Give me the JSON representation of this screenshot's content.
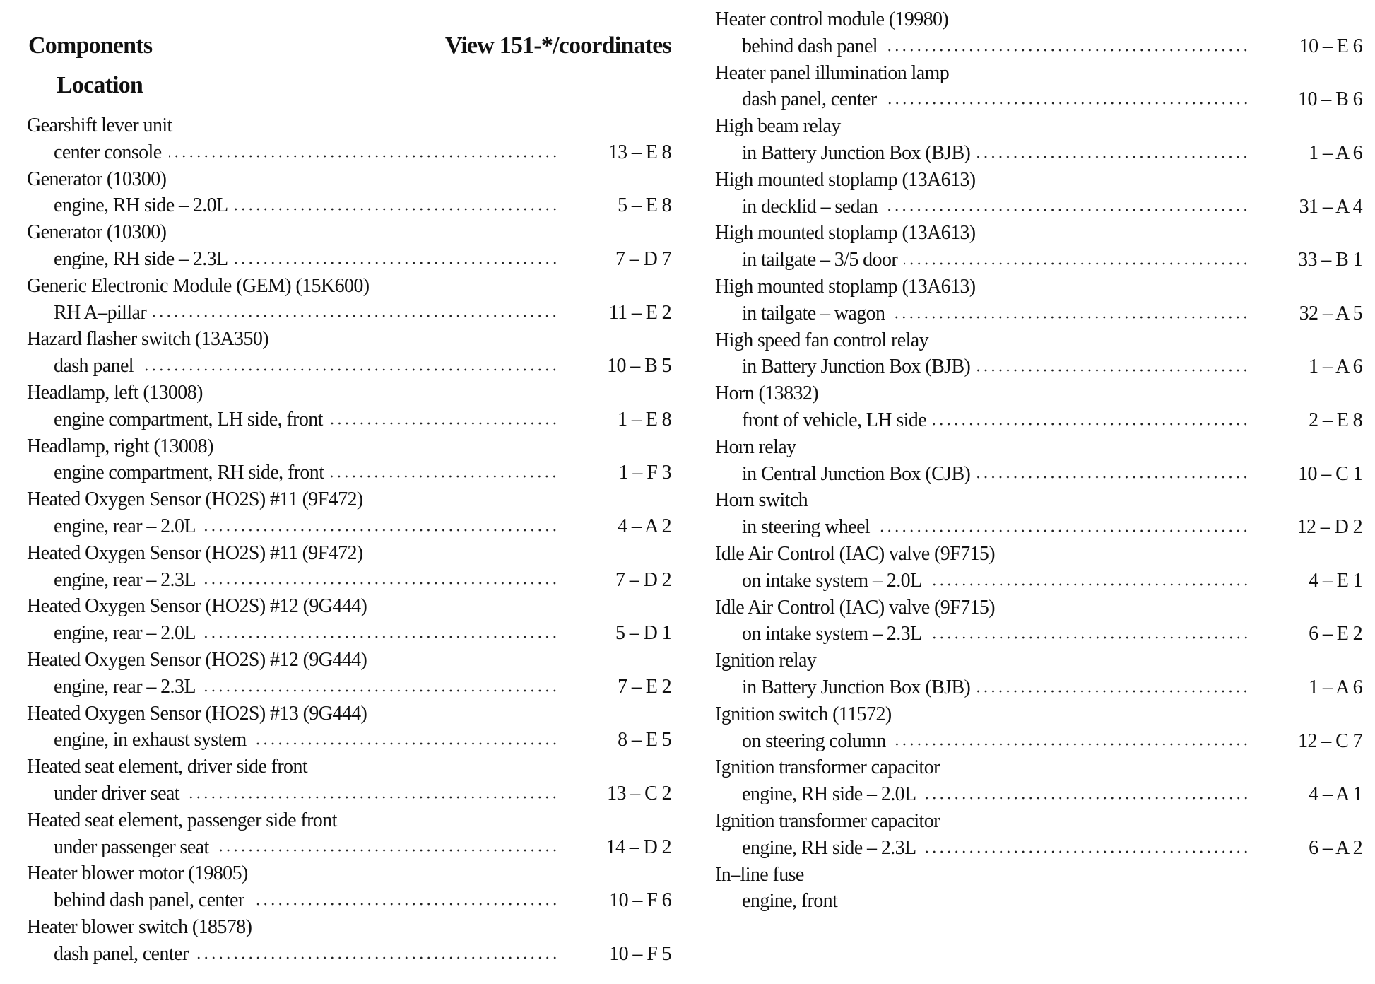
{
  "header": {
    "components": "Components",
    "location": "Location",
    "view": "View 151-*/coordinates"
  },
  "left_column": {
    "entries": [
      {
        "name": "Gearshift lever unit",
        "location": "center console",
        "coordinates": "13 – E 8"
      },
      {
        "name": "Generator (10300)",
        "location": "engine, RH side – 2.0L",
        "coordinates": "5 – E 8"
      },
      {
        "name": "Generator (10300)",
        "location": "engine, RH side – 2.3L",
        "coordinates": "7 – D 7"
      },
      {
        "name": "Generic Electronic Module (GEM) (15K600)",
        "location": "RH A–pillar",
        "coordinates": "11 – E 2"
      },
      {
        "name": "Hazard flasher switch (13A350)",
        "location": "dash panel",
        "coordinates": "10 – B 5"
      },
      {
        "name": "Headlamp, left (13008)",
        "location": "engine compartment, LH side, front",
        "coordinates": "1 – E 8"
      },
      {
        "name": "Headlamp, right (13008)",
        "location": "engine compartment, RH side, front",
        "coordinates": "1 – F 3"
      },
      {
        "name": "Heated Oxygen Sensor (HO2S) #11 (9F472)",
        "location": "engine, rear – 2.0L",
        "coordinates": "4 – A 2"
      },
      {
        "name": "Heated Oxygen Sensor (HO2S) #11 (9F472)",
        "location": "engine, rear – 2.3L",
        "coordinates": "7 – D 2"
      },
      {
        "name": "Heated Oxygen Sensor (HO2S) #12 (9G444)",
        "location": "engine, rear – 2.0L",
        "coordinates": "5 – D 1"
      },
      {
        "name": "Heated Oxygen Sensor (HO2S) #12 (9G444)",
        "location": "engine, rear – 2.3L",
        "coordinates": "7 – E 2"
      },
      {
        "name": "Heated Oxygen Sensor (HO2S) #13 (9G444)",
        "location": "engine, in exhaust system",
        "coordinates": "8 – E 5"
      },
      {
        "name": "Heated seat element, driver side front",
        "location": "under driver seat",
        "coordinates": "13 – C 2"
      },
      {
        "name": "Heated seat element, passenger side front",
        "location": "under passenger seat",
        "coordinates": "14 – D 2"
      },
      {
        "name": "Heater blower motor (19805)",
        "location": "behind dash panel, center",
        "coordinates": "10 – F 6"
      },
      {
        "name": "Heater blower switch (18578)",
        "location": "dash panel, center",
        "coordinates": "10 – F 5"
      }
    ]
  },
  "right_column": {
    "entries": [
      {
        "name": "Heater control module (19980)",
        "location": "behind dash panel",
        "coordinates": "10 – E 6"
      },
      {
        "name": "Heater panel illumination lamp",
        "location": "dash panel, center",
        "coordinates": "10 – B 6"
      },
      {
        "name": "High beam relay",
        "location": "in Battery Junction Box (BJB)",
        "coordinates": "1 – A 6"
      },
      {
        "name": "High mounted stoplamp (13A613)",
        "location": "in decklid – sedan",
        "coordinates": "31 – A 4"
      },
      {
        "name": "High mounted stoplamp (13A613)",
        "location": "in tailgate – 3/5 door",
        "coordinates": "33 – B 1"
      },
      {
        "name": "High mounted stoplamp (13A613)",
        "location": "in tailgate – wagon",
        "coordinates": "32 – A 5"
      },
      {
        "name": "High speed fan control relay",
        "location": "in Battery Junction Box (BJB)",
        "coordinates": "1 – A 6"
      },
      {
        "name": "Horn (13832)",
        "location": "front of vehicle, LH side",
        "coordinates": "2 – E 8"
      },
      {
        "name": "Horn relay",
        "location": "in Central Junction Box (CJB)",
        "coordinates": "10 – C 1"
      },
      {
        "name": "Horn switch",
        "location": "in steering wheel",
        "coordinates": "12 – D 2"
      },
      {
        "name": "Idle Air Control (IAC) valve (9F715)",
        "location": "on intake system – 2.0L",
        "coordinates": "4 – E 1"
      },
      {
        "name": "Idle Air Control (IAC) valve (9F715)",
        "location": "on intake system – 2.3L",
        "coordinates": "6 – E 2"
      },
      {
        "name": "Ignition relay",
        "location": "in Battery Junction Box (BJB)",
        "coordinates": "1 – A 6"
      },
      {
        "name": "Ignition switch (11572)",
        "location": "on steering column",
        "coordinates": "12 – C 7"
      },
      {
        "name": "Ignition transformer capacitor",
        "location": "engine, RH side – 2.0L",
        "coordinates": "4 – A 1"
      },
      {
        "name": "Ignition transformer capacitor",
        "location": "engine, RH side – 2.3L",
        "coordinates": "6 – A 2"
      },
      {
        "name": "In–line fuse",
        "location": "engine, front",
        "coordinates": ""
      }
    ]
  }
}
